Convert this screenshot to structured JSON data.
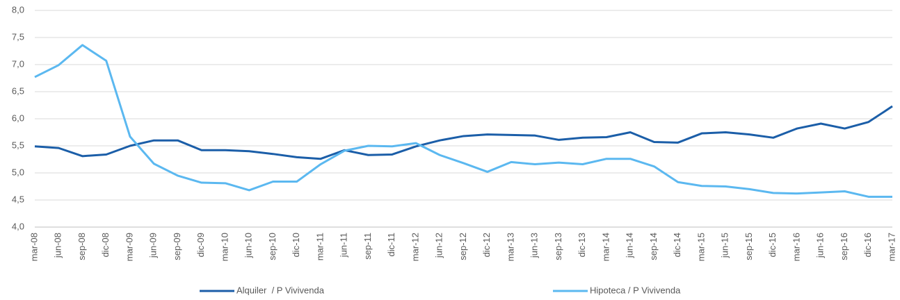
{
  "chart_data": {
    "type": "line",
    "categories": [
      "mar-08",
      "jun-08",
      "sep-08",
      "dic-08",
      "mar-09",
      "jun-09",
      "sep-09",
      "dic-09",
      "mar-10",
      "jun-10",
      "sep-10",
      "dic-10",
      "mar-11",
      "jun-11",
      "sep-11",
      "dic-11",
      "mar-12",
      "jun-12",
      "sep-12",
      "dic-12",
      "mar-13",
      "jun-13",
      "sep-13",
      "dic-13",
      "mar-14",
      "jun-14",
      "sep-14",
      "dic-14",
      "mar-15",
      "jun-15",
      "sep-15",
      "dic-15",
      "mar-16",
      "jun-16",
      "sep-16",
      "dic-16",
      "mar-17"
    ],
    "series": [
      {
        "name": "Alquiler  / P Vivivenda",
        "color": "#1b5ea8",
        "values": [
          5.49,
          5.46,
          5.31,
          5.34,
          5.5,
          5.6,
          5.6,
          5.42,
          5.42,
          5.4,
          5.35,
          5.29,
          5.26,
          5.42,
          5.33,
          5.34,
          5.49,
          5.6,
          5.68,
          5.71,
          5.7,
          5.69,
          5.61,
          5.65,
          5.66,
          5.75,
          5.57,
          5.56,
          5.73,
          5.75,
          5.71,
          5.65,
          5.82,
          5.91,
          5.82,
          5.94,
          6.23
        ]
      },
      {
        "name": "Hipoteca / P Vivivenda",
        "color": "#5bb8f0",
        "values": [
          6.77,
          6.99,
          7.36,
          7.07,
          5.67,
          5.17,
          4.95,
          4.82,
          4.81,
          4.68,
          4.84,
          4.84,
          5.16,
          5.41,
          5.5,
          5.49,
          5.55,
          5.33,
          5.18,
          5.02,
          5.2,
          5.16,
          5.19,
          5.16,
          5.26,
          5.26,
          5.12,
          4.83,
          4.76,
          4.75,
          4.7,
          4.63,
          4.62,
          4.64,
          4.66,
          4.56,
          4.56
        ]
      }
    ],
    "ylim": [
      4,
      8
    ],
    "yticks": [
      {
        "value": 4,
        "label": "4,0"
      },
      {
        "value": 4.5,
        "label": "4,5"
      },
      {
        "value": 5,
        "label": "5,0"
      },
      {
        "value": 5.5,
        "label": "5,5"
      },
      {
        "value": 6,
        "label": "6,0"
      },
      {
        "value": 6.5,
        "label": "6,5"
      },
      {
        "value": 7,
        "label": "7,0"
      },
      {
        "value": 7.5,
        "label": "7,5"
      },
      {
        "value": 8,
        "label": "8,0"
      }
    ],
    "grid": true
  }
}
